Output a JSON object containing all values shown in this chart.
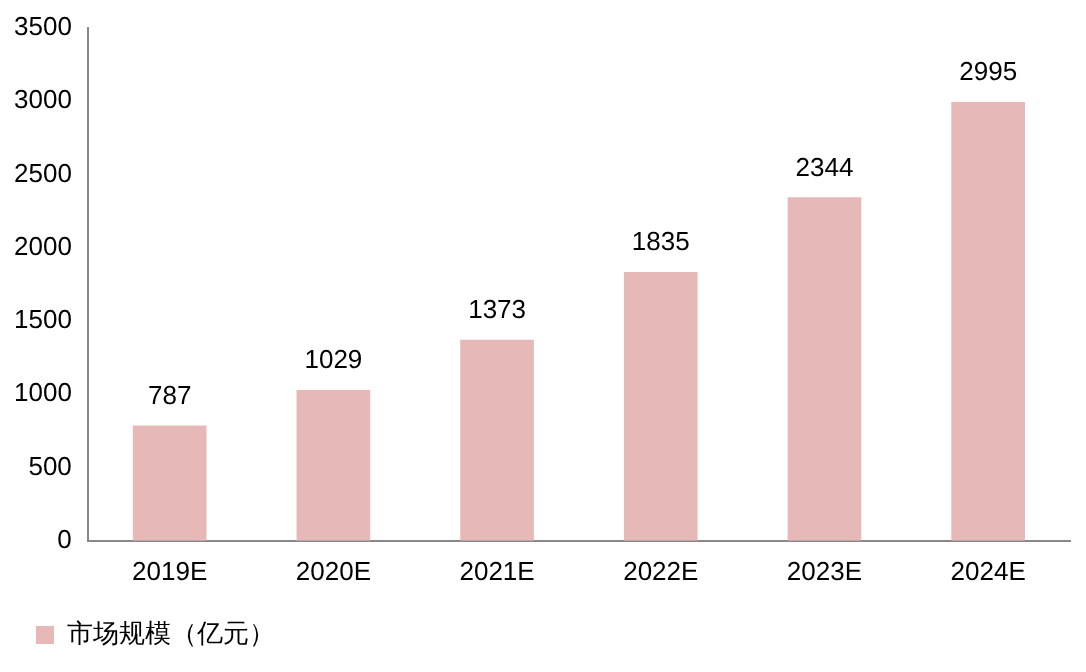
{
  "chart_data": {
    "type": "bar",
    "categories": [
      "2019E",
      "2020E",
      "2021E",
      "2022E",
      "2023E",
      "2024E"
    ],
    "series": [
      {
        "name": "市场规模（亿元）",
        "color": "#e6b8b7",
        "values": [
          787,
          1029,
          1373,
          1835,
          2344,
          2995
        ]
      }
    ],
    "ylim": [
      0,
      3500
    ],
    "yticks": [
      0,
      500,
      1000,
      1500,
      2000,
      2500,
      3000,
      3500
    ],
    "data_labels": true,
    "legend": "bottom left"
  }
}
